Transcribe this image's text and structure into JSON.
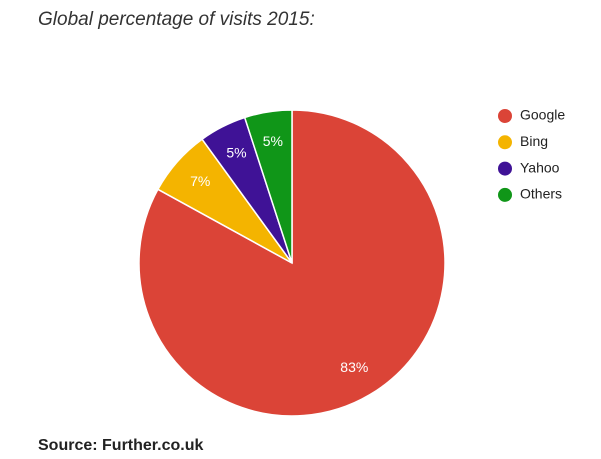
{
  "chart_data": {
    "type": "pie",
    "title": "Global percentage of visits 2015:",
    "source": "Source: Further.co.uk",
    "categories": [
      "Google",
      "Bing",
      "Yahoo",
      "Others"
    ],
    "values": [
      83,
      7,
      5,
      5
    ],
    "value_labels": [
      "83%",
      "7%",
      "5%",
      "5%"
    ],
    "colors": [
      "#db4437",
      "#f4b400",
      "#3f1296",
      "#109618"
    ],
    "legend": "right"
  }
}
